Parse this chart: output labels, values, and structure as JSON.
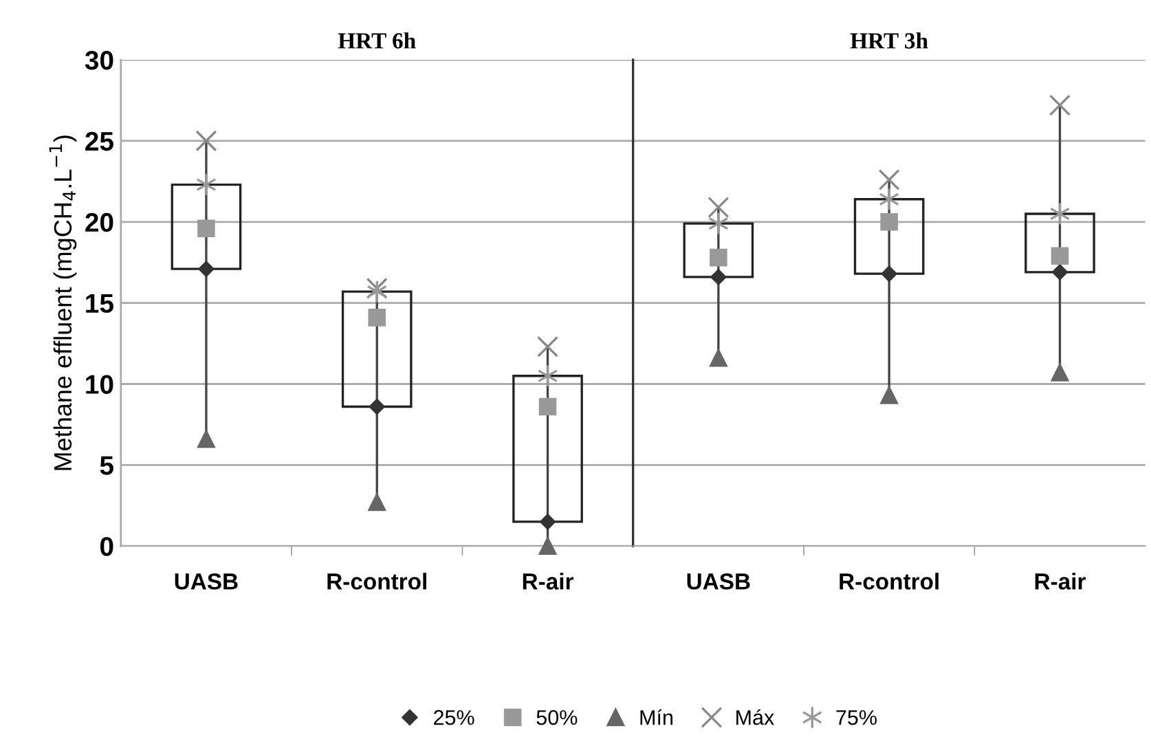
{
  "chart_data": [
    {
      "type": "box",
      "title": "HRT 6h",
      "ylabel": "Methane effluent (mgCH$_{4}$.L$^{−1}$)",
      "categories": [
        "UASB",
        "R-control",
        "R-air"
      ],
      "series": [
        {
          "name": "25%",
          "type": "scatter",
          "marker": "diamond",
          "color": "#333333",
          "values": [
            17.1,
            8.6,
            1.5
          ]
        },
        {
          "name": "50%",
          "type": "scatter",
          "marker": "square",
          "color": "#999999",
          "values": [
            19.6,
            14.1,
            8.6
          ]
        },
        {
          "name": "Mín",
          "type": "scatter",
          "marker": "triangle",
          "color": "#666666",
          "values": [
            6.6,
            2.7,
            0
          ]
        },
        {
          "name": "Máx",
          "type": "scatter",
          "marker": "cross",
          "color": "#888888",
          "values": [
            25.0,
            15.9,
            12.3
          ]
        },
        {
          "name": "75%",
          "type": "scatter",
          "color": "#999999",
          "values": [
            22.3,
            15.7,
            10.5
          ]
        }
      ],
      "ylim": [
        0,
        30
      ],
      "yticks": [
        0,
        5,
        10,
        15,
        20,
        25,
        30
      ],
      "grid": "y",
      "legend": "bottom"
    },
    {
      "type": "box",
      "title": "HRT 3h",
      "categories": [
        "UASB",
        "R-control",
        "R-air"
      ],
      "series": [
        {
          "type": "scatter",
          "marker": "diamond",
          "color": "#333333",
          "values": [
            16.6,
            16.8,
            16.9
          ]
        },
        {
          "type": "scatter",
          "marker": "square",
          "color": "#999999",
          "values": [
            17.8,
            20.0,
            17.9
          ]
        },
        {
          "type": "scatter",
          "marker": "triangle",
          "color": "#666666",
          "values": [
            11.6,
            9.3,
            10.7
          ]
        },
        {
          "type": "scatter",
          "marker": "cross",
          "color": "#888888",
          "values": [
            20.9,
            22.6,
            27.2
          ]
        },
        {
          "type": "scatter",
          "color": "#999999",
          "values": [
            19.9,
            21.4,
            20.5
          ]
        }
      ],
      "ylim": [
        0,
        30
      ],
      "yticks": [
        0,
        5,
        10,
        15,
        20,
        25,
        30
      ],
      "grid": "y",
      "tick_labels": "x"
    }
  ]
}
